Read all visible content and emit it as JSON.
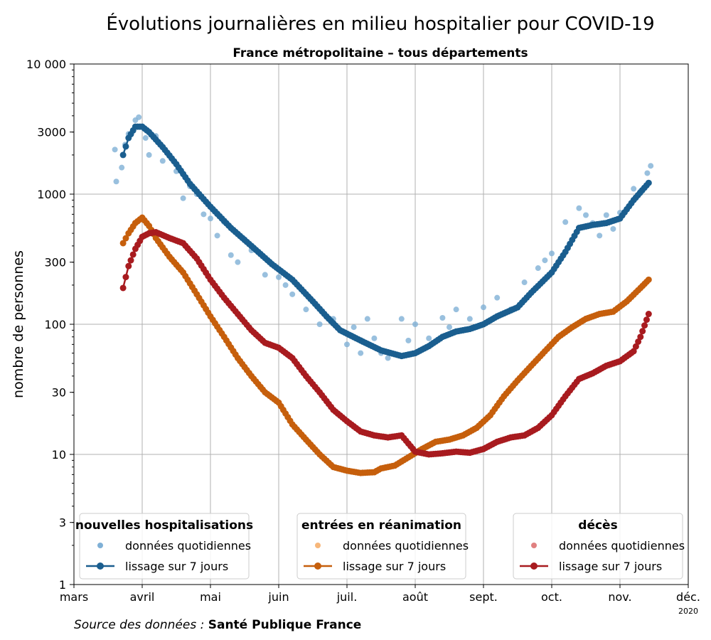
{
  "chart_data": {
    "type": "scatter+line",
    "title": "Évolutions journalières en milieu hospitalier pour COVID-19",
    "subtitle": "France métropolitaine – tous départements",
    "ylabel": "nombre de personnes",
    "yscale": "log",
    "ylim": [
      1,
      10000
    ],
    "y_ticks": [
      {
        "value": 1,
        "label": "1"
      },
      {
        "value": 3,
        "label": "3"
      },
      {
        "value": 10,
        "label": "10"
      },
      {
        "value": 30,
        "label": "30"
      },
      {
        "value": 100,
        "label": "100"
      },
      {
        "value": 300,
        "label": "300"
      },
      {
        "value": 1000,
        "label": "1000"
      },
      {
        "value": 3000,
        "label": "3000"
      },
      {
        "value": 10000,
        "label": "10 000"
      }
    ],
    "x_ticks": [
      "mars",
      "avril",
      "mai",
      "juin",
      "juil.",
      "août",
      "sept.",
      "oct.",
      "nov.",
      "déc."
    ],
    "x_year": "2020",
    "x_unit": "month index (0 = 1 mars, 9 = 1 déc.)",
    "xlim": [
      0,
      9
    ],
    "grid": true,
    "series": [
      {
        "name": "nouvelles hospitalisations",
        "color": "#1a5e8f",
        "dot_color": "#7fb0d6",
        "smooth_points": [
          [
            0.72,
            2000
          ],
          [
            0.8,
            2700
          ],
          [
            0.9,
            3300
          ],
          [
            1.0,
            3300
          ],
          [
            1.1,
            3000
          ],
          [
            1.3,
            2300
          ],
          [
            1.5,
            1700
          ],
          [
            1.7,
            1200
          ],
          [
            2.0,
            800
          ],
          [
            2.3,
            550
          ],
          [
            2.6,
            400
          ],
          [
            2.9,
            290
          ],
          [
            3.2,
            220
          ],
          [
            3.5,
            150
          ],
          [
            3.7,
            115
          ],
          [
            3.9,
            90
          ],
          [
            4.2,
            75
          ],
          [
            4.5,
            63
          ],
          [
            4.8,
            57
          ],
          [
            5.0,
            60
          ],
          [
            5.2,
            68
          ],
          [
            5.4,
            80
          ],
          [
            5.6,
            88
          ],
          [
            5.8,
            92
          ],
          [
            6.0,
            100
          ],
          [
            6.2,
            115
          ],
          [
            6.5,
            135
          ],
          [
            6.7,
            175
          ],
          [
            7.0,
            250
          ],
          [
            7.2,
            360
          ],
          [
            7.4,
            550
          ],
          [
            7.6,
            580
          ],
          [
            7.8,
            600
          ],
          [
            8.0,
            650
          ],
          [
            8.2,
            900
          ],
          [
            8.42,
            1220
          ]
        ],
        "daily_points": [
          [
            0.6,
            2200
          ],
          [
            0.62,
            1250
          ],
          [
            0.7,
            1600
          ],
          [
            0.75,
            2400
          ],
          [
            0.8,
            2900
          ],
          [
            0.9,
            3700
          ],
          [
            0.95,
            3900
          ],
          [
            1.05,
            2700
          ],
          [
            1.1,
            2000
          ],
          [
            1.2,
            2800
          ],
          [
            1.3,
            1800
          ],
          [
            1.4,
            2000
          ],
          [
            1.5,
            1500
          ],
          [
            1.6,
            930
          ],
          [
            1.7,
            1150
          ],
          [
            1.8,
            1000
          ],
          [
            1.9,
            700
          ],
          [
            2.0,
            650
          ],
          [
            2.1,
            480
          ],
          [
            2.2,
            610
          ],
          [
            2.3,
            340
          ],
          [
            2.4,
            300
          ],
          [
            2.5,
            450
          ],
          [
            2.6,
            370
          ],
          [
            2.8,
            240
          ],
          [
            3.0,
            230
          ],
          [
            3.1,
            200
          ],
          [
            3.2,
            170
          ],
          [
            3.4,
            130
          ],
          [
            3.6,
            100
          ],
          [
            3.8,
            110
          ],
          [
            4.0,
            70
          ],
          [
            4.1,
            95
          ],
          [
            4.2,
            60
          ],
          [
            4.3,
            110
          ],
          [
            4.4,
            78
          ],
          [
            4.5,
            60
          ],
          [
            4.6,
            55
          ],
          [
            4.8,
            110
          ],
          [
            4.9,
            75
          ],
          [
            5.0,
            100
          ],
          [
            5.2,
            78
          ],
          [
            5.4,
            112
          ],
          [
            5.5,
            95
          ],
          [
            5.6,
            130
          ],
          [
            5.8,
            110
          ],
          [
            6.0,
            135
          ],
          [
            6.2,
            160
          ],
          [
            6.4,
            130
          ],
          [
            6.6,
            210
          ],
          [
            6.8,
            270
          ],
          [
            6.9,
            310
          ],
          [
            7.0,
            350
          ],
          [
            7.2,
            610
          ],
          [
            7.4,
            780
          ],
          [
            7.5,
            690
          ],
          [
            7.6,
            600
          ],
          [
            7.7,
            480
          ],
          [
            7.8,
            690
          ],
          [
            7.9,
            540
          ],
          [
            8.0,
            720
          ],
          [
            8.1,
            760
          ],
          [
            8.2,
            1100
          ],
          [
            8.3,
            1050
          ],
          [
            8.4,
            1450
          ],
          [
            8.45,
            1650
          ]
        ]
      },
      {
        "name": "entrées en réanimation",
        "color": "#c65f0c",
        "dot_color": "#f7b77a",
        "smooth_points": [
          [
            0.72,
            420
          ],
          [
            0.8,
            500
          ],
          [
            0.9,
            600
          ],
          [
            1.0,
            660
          ],
          [
            1.1,
            570
          ],
          [
            1.2,
            460
          ],
          [
            1.4,
            330
          ],
          [
            1.6,
            250
          ],
          [
            1.8,
            170
          ],
          [
            2.0,
            115
          ],
          [
            2.2,
            80
          ],
          [
            2.4,
            55
          ],
          [
            2.6,
            40
          ],
          [
            2.8,
            30
          ],
          [
            3.0,
            25
          ],
          [
            3.2,
            17
          ],
          [
            3.4,
            13
          ],
          [
            3.6,
            10
          ],
          [
            3.8,
            8
          ],
          [
            4.0,
            7.5
          ],
          [
            4.2,
            7.2
          ],
          [
            4.4,
            7.3
          ],
          [
            4.5,
            7.8
          ],
          [
            4.7,
            8.2
          ],
          [
            4.9,
            9.5
          ],
          [
            5.1,
            11
          ],
          [
            5.3,
            12.5
          ],
          [
            5.5,
            13
          ],
          [
            5.7,
            14
          ],
          [
            5.9,
            16
          ],
          [
            6.1,
            20
          ],
          [
            6.3,
            28
          ],
          [
            6.5,
            37
          ],
          [
            6.7,
            48
          ],
          [
            6.9,
            62
          ],
          [
            7.1,
            80
          ],
          [
            7.3,
            95
          ],
          [
            7.5,
            110
          ],
          [
            7.7,
            120
          ],
          [
            7.9,
            125
          ],
          [
            8.1,
            150
          ],
          [
            8.3,
            190
          ],
          [
            8.42,
            220
          ]
        ]
      },
      {
        "name": "décès",
        "color": "#a81b1f",
        "dot_color": "#e08080",
        "smooth_points": [
          [
            0.72,
            190
          ],
          [
            0.8,
            280
          ],
          [
            0.9,
            380
          ],
          [
            1.0,
            470
          ],
          [
            1.1,
            500
          ],
          [
            1.2,
            510
          ],
          [
            1.4,
            460
          ],
          [
            1.6,
            420
          ],
          [
            1.8,
            320
          ],
          [
            2.0,
            220
          ],
          [
            2.2,
            160
          ],
          [
            2.4,
            120
          ],
          [
            2.6,
            90
          ],
          [
            2.8,
            72
          ],
          [
            3.0,
            66
          ],
          [
            3.2,
            55
          ],
          [
            3.4,
            40
          ],
          [
            3.6,
            30
          ],
          [
            3.8,
            22
          ],
          [
            4.0,
            18
          ],
          [
            4.2,
            15
          ],
          [
            4.4,
            14
          ],
          [
            4.6,
            13.5
          ],
          [
            4.8,
            14
          ],
          [
            5.0,
            10.5
          ],
          [
            5.2,
            10
          ],
          [
            5.4,
            10.2
          ],
          [
            5.6,
            10.5
          ],
          [
            5.8,
            10.3
          ],
          [
            6.0,
            11
          ],
          [
            6.2,
            12.5
          ],
          [
            6.4,
            13.5
          ],
          [
            6.6,
            14
          ],
          [
            6.8,
            16
          ],
          [
            7.0,
            20
          ],
          [
            7.2,
            28
          ],
          [
            7.4,
            38
          ],
          [
            7.6,
            42
          ],
          [
            7.8,
            48
          ],
          [
            8.0,
            52
          ],
          [
            8.2,
            62
          ],
          [
            8.3,
            80
          ],
          [
            8.42,
            120
          ]
        ]
      }
    ],
    "legends": [
      {
        "title": "nouvelles hospitalisations",
        "daily_label": "données quotidiennes",
        "smooth_label": "lissage sur 7 jours"
      },
      {
        "title": "entrées en réanimation",
        "daily_label": "données quotidiennes",
        "smooth_label": "lissage sur 7 jours"
      },
      {
        "title": "décès",
        "daily_label": "données quotidiennes",
        "smooth_label": "lissage sur 7 jours"
      }
    ],
    "source_prefix": "Source des données : ",
    "source_name": "Santé Publique France"
  }
}
